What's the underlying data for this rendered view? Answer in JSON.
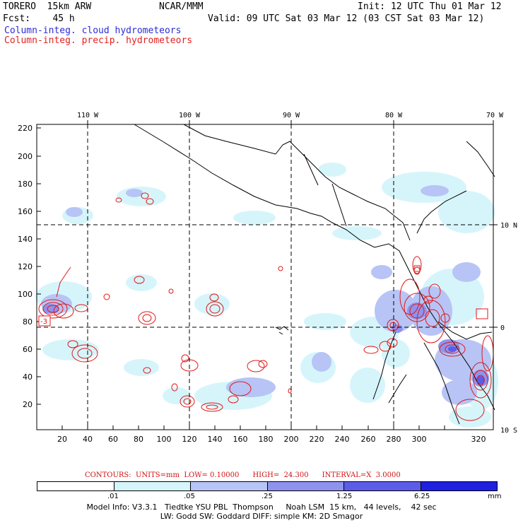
{
  "header": {
    "model": "TORERO  15km ARW",
    "center": "NCAR/MMM",
    "init": "Init: 12 UTC Thu 01 Mar 12",
    "fcst": "Fcst:    45 h",
    "valid": "Valid: 09 UTC Sat 03 Mar 12 (03 CST Sat 03 Mar 12)",
    "field_cloud": "Column-integ. cloud hydrometeors",
    "field_precip": "Column-integ. precip. hydrometeors"
  },
  "colors": {
    "cloud_text": "#2b2bd6",
    "precip_text": "#e02020",
    "contour": "#e01818",
    "shade": [
      "#ffffff",
      "#d6f5fb",
      "#b7c4f5",
      "#8f93ee",
      "#5c5ce8",
      "#2020e0"
    ]
  },
  "axes": {
    "top_lon": [
      "110 W",
      "100 W",
      "90 W",
      "80 W",
      "70 W"
    ],
    "right_lat": [
      "10 N",
      "0",
      "10 S"
    ],
    "left_ticks": [
      "220",
      "200",
      "180",
      "160",
      "140",
      "120",
      "100",
      "80",
      "60",
      "40",
      "20"
    ],
    "bottom_ticks": [
      "20",
      "40",
      "60",
      "80",
      "100",
      "120",
      "140",
      "160",
      "180",
      "200",
      "220",
      "240",
      "260",
      "280",
      "300",
      "320"
    ],
    "high_marker": "-3"
  },
  "contours": {
    "label": "CONTOURS:  UNITS=mm  LOW= 0.10000      HIGH=  24.300      INTERVAL=X  3.0000"
  },
  "legend": {
    "labels": [
      ".01",
      ".05",
      ".25",
      "1.25",
      "6.25"
    ],
    "units": "mm"
  },
  "footer": {
    "line1": "Model Info: V3.3.1   Tiedtke YSU PBL  Thompson     Noah LSM  15 km,   44 levels,    42 sec",
    "line2": "LW: Godd SW: Goddard DIFF: simple KM: 2D Smagor"
  }
}
